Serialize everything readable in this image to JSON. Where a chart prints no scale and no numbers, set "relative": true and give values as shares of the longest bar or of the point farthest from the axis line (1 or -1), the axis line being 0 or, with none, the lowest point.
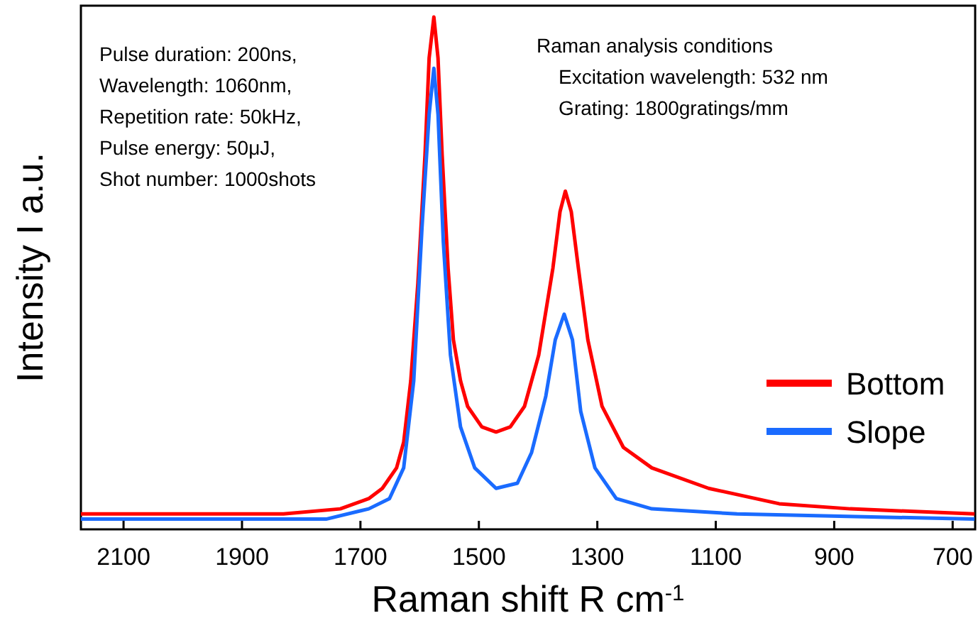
{
  "chart_data": {
    "type": "line",
    "relative": true,
    "xlabel": "Raman shift R cm$^{-1}$",
    "ylabel": "Intensity I a.u.",
    "xlim": [
      2172,
      662
    ],
    "xticks": [
      2100,
      1900,
      1700,
      1500,
      1300,
      1100,
      900,
      700
    ],
    "legend": "right",
    "line_style": "solid",
    "grid": false,
    "annotations": [
      "Pulse duration: 200ns,\nWavelength: 1060nm,\nRepetition rate: 50kHz,\nPulse energy: 50μJ,\nShot number: 1000shots",
      "Raman analysis conditions\n    Excitation wavelength: 532 nm\n    Grating: 1800gratings/mm"
    ],
    "series": [
      {
        "name": "Bottom",
        "color": "#ff0000",
        "x": [
          2172,
          1830,
          1734,
          1686,
          1663,
          1639,
          1627,
          1615,
          1603,
          1591,
          1584,
          1576,
          1569,
          1562,
          1552,
          1543,
          1531,
          1519,
          1495,
          1471,
          1447,
          1423,
          1399,
          1375,
          1363,
          1354,
          1344,
          1332,
          1316,
          1292,
          1256,
          1208,
          1112,
          993,
          873,
          663
        ],
        "values": [
          0.03,
          0.03,
          0.04,
          0.06,
          0.08,
          0.12,
          0.17,
          0.29,
          0.48,
          0.73,
          0.92,
          1,
          0.92,
          0.73,
          0.51,
          0.37,
          0.29,
          0.24,
          0.2,
          0.19,
          0.2,
          0.24,
          0.34,
          0.51,
          0.62,
          0.66,
          0.62,
          0.51,
          0.37,
          0.24,
          0.16,
          0.12,
          0.08,
          0.05,
          0.04,
          0.03
        ]
      },
      {
        "name": "Slope",
        "color": "#1a6bff",
        "x": [
          2172,
          1758,
          1686,
          1651,
          1627,
          1610,
          1596,
          1584,
          1576,
          1569,
          1560,
          1548,
          1531,
          1507,
          1471,
          1435,
          1411,
          1387,
          1371,
          1356,
          1342,
          1328,
          1304,
          1268,
          1208,
          1064,
          663
        ],
        "values": [
          0.02,
          0.02,
          0.04,
          0.06,
          0.12,
          0.29,
          0.59,
          0.81,
          0.9,
          0.81,
          0.56,
          0.34,
          0.2,
          0.12,
          0.08,
          0.09,
          0.15,
          0.26,
          0.37,
          0.42,
          0.37,
          0.23,
          0.12,
          0.06,
          0.04,
          0.03,
          0.02
        ]
      }
    ]
  }
}
